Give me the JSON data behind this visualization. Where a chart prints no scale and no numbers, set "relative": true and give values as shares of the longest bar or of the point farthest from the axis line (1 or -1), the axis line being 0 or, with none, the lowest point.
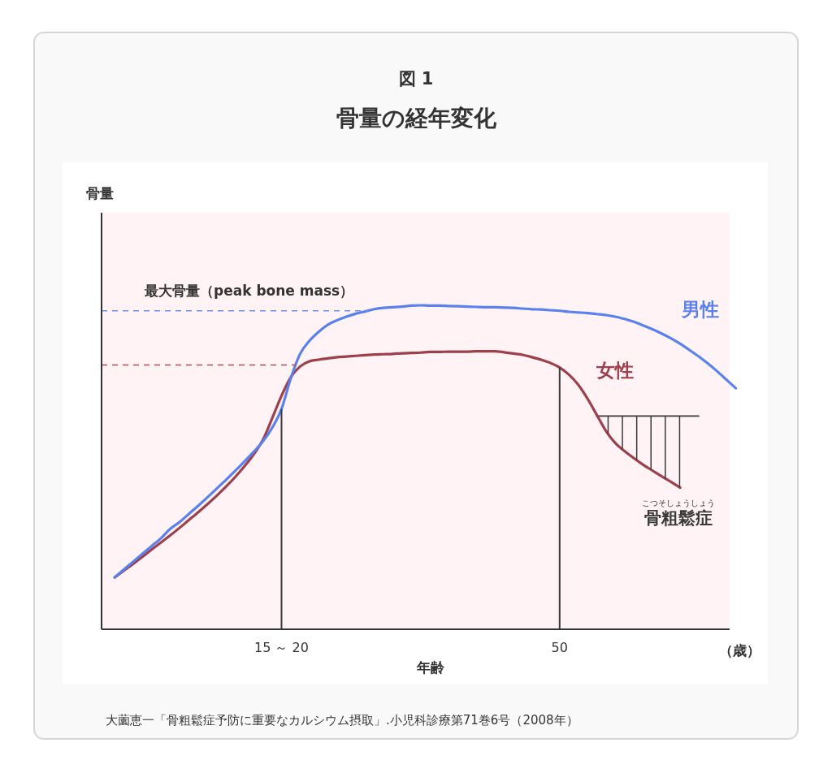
{
  "chart_data": {
    "type": "line",
    "title": "図 1",
    "subtitle": "骨量の経年変化",
    "xlabel": "年齢",
    "relative": true,
    "categories": [
      null,
      null,
      null,
      null,
      null,
      null,
      null,
      null,
      null,
      null,
      null,
      null,
      null,
      null,
      null,
      null,
      null,
      null,
      "15 ～ 20",
      null,
      null,
      null,
      null,
      null,
      null,
      null,
      null,
      null,
      null,
      null,
      null,
      null,
      null,
      null,
      null,
      null,
      null,
      null,
      null,
      null,
      null,
      null,
      null,
      null,
      null,
      null,
      null,
      null,
      "50",
      null,
      null,
      null,
      null,
      null,
      null,
      null,
      null,
      null,
      null,
      null,
      null,
      null,
      null,
      null,
      null,
      null,
      null,
      null
    ],
    "series": [
      {
        "name": "骨粗鬆症",
        "color": "#3a3a3a",
        "values": [
          null,
          null,
          null,
          null,
          null,
          null,
          null,
          null,
          null,
          null,
          null,
          null,
          null,
          null,
          null,
          null,
          null,
          null,
          null,
          null,
          null,
          null,
          null,
          null,
          null,
          null,
          null,
          null,
          null,
          null,
          null,
          null,
          null,
          null,
          null,
          null,
          null,
          null,
          null,
          null,
          null,
          null,
          null,
          null,
          null,
          null,
          null,
          null,
          null,
          null,
          null,
          null,
          0.658,
          0.658,
          0.658,
          0.658,
          0.658,
          0.658,
          0.658,
          0.658,
          0.658,
          0.658,
          0.658,
          0.658,
          null,
          null,
          null,
          null
        ]
      },
      {
        "name": "女性",
        "color": "#9e404b",
        "values": [
          0.16,
          0.181,
          0.202,
          0.224,
          0.246,
          0.268,
          0.29,
          0.313,
          0.337,
          0.361,
          0.386,
          0.412,
          0.44,
          0.47,
          0.503,
          0.54,
          0.585,
          0.652,
          0.721,
          0.778,
          0.811,
          0.827,
          0.832,
          0.836,
          0.84,
          0.842,
          0.844,
          0.846,
          0.848,
          0.849,
          0.85,
          0.852,
          0.853,
          0.854,
          0.856,
          0.856,
          0.857,
          0.857,
          0.857,
          0.858,
          0.858,
          0.858,
          0.855,
          0.851,
          0.847,
          0.84,
          0.832,
          0.822,
          0.808,
          0.786,
          0.755,
          0.712,
          0.662,
          0.612,
          0.575,
          0.55,
          0.528,
          0.508,
          0.49,
          0.472,
          0.455,
          0.437,
          null,
          null,
          null,
          null,
          null,
          null
        ]
      },
      {
        "name": "男性",
        "color": "#5a82ee",
        "values": [
          0.16,
          0.185,
          0.209,
          0.233,
          0.257,
          0.281,
          0.31,
          0.331,
          0.356,
          0.381,
          0.407,
          0.434,
          0.461,
          0.489,
          0.518,
          0.548,
          0.58,
          0.622,
          0.68,
          0.775,
          0.85,
          0.89,
          0.918,
          0.94,
          0.954,
          0.965,
          0.974,
          0.981,
          0.988,
          0.992,
          0.994,
          0.996,
          0.999,
          1.0,
          0.999,
          0.999,
          0.998,
          0.997,
          0.996,
          0.995,
          0.994,
          0.994,
          0.993,
          0.992,
          0.99,
          0.988,
          0.987,
          0.985,
          0.983,
          0.98,
          0.978,
          0.976,
          0.973,
          0.97,
          0.965,
          0.958,
          0.949,
          0.938,
          0.926,
          0.913,
          0.898,
          0.881,
          0.862,
          0.842,
          0.82,
          0.796,
          0.77,
          0.744
        ]
      }
    ],
    "ref_lines": [
      {
        "axis": "y",
        "value": 0.983,
        "color": "#6d8ff0",
        "line_style": "dashed",
        "label": "最大骨量（peak bone mass）"
      },
      {
        "axis": "y",
        "value": 0.816,
        "color": "#a8525c",
        "line_style": "dashed"
      },
      {
        "axis": "x",
        "value": "15 ～ 20",
        "color": "#3a3a3a"
      },
      {
        "axis": "x",
        "value": "50",
        "color": "#3a3a3a"
      }
    ],
    "annotations": [
      "骨量",
      "こつそしょうしょう",
      "（歳）",
      "大薗恵一「骨粗鬆症予防に重要なカルシウム摂取」.小児科診療第71巻6号（2008年）"
    ]
  }
}
